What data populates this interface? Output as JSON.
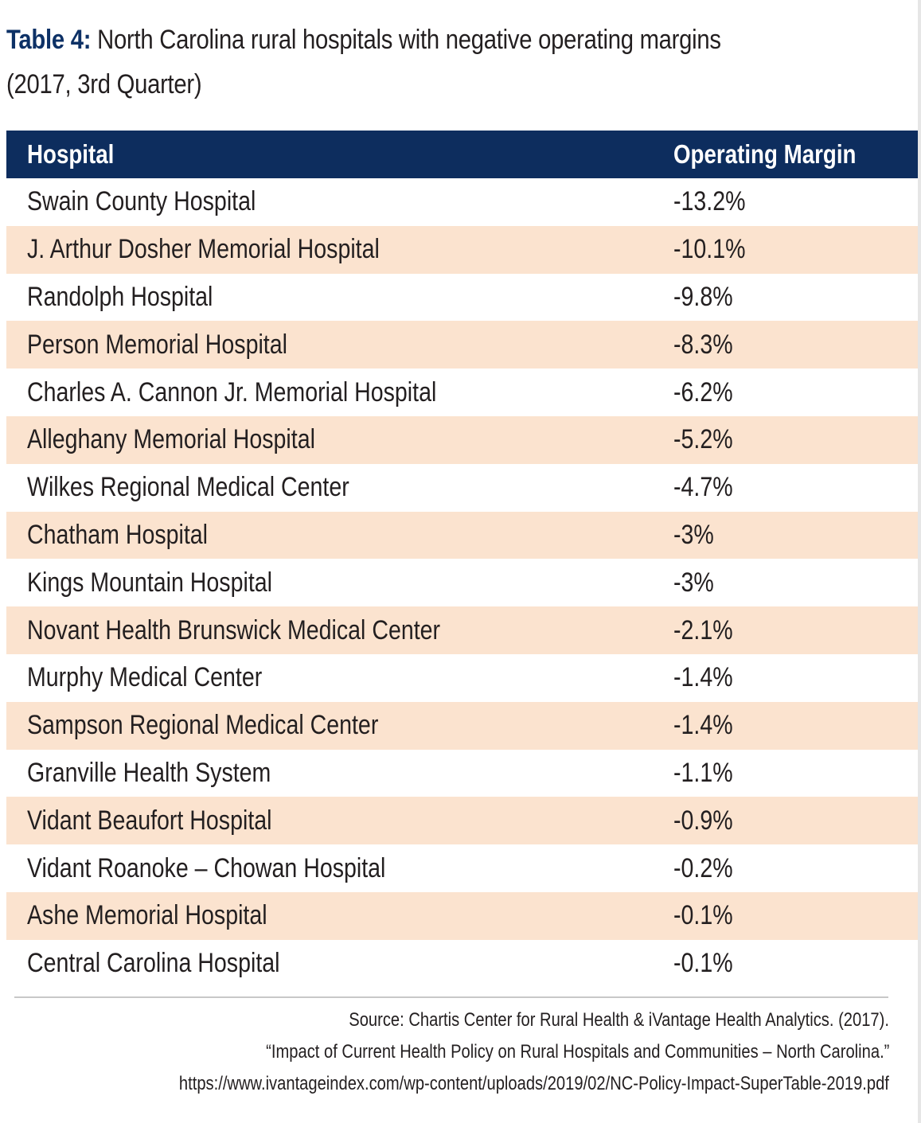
{
  "title": {
    "label": "Table 4:",
    "text": "North Carolina rural hospitals with negative operating margins",
    "line2": "(2017, 3rd Quarter)"
  },
  "table": {
    "columns": [
      "Hospital",
      "Operating Margin"
    ],
    "rows": [
      {
        "hospital": "Swain County Hospital",
        "margin": "-13.2%"
      },
      {
        "hospital": "J. Arthur Dosher Memorial Hospital",
        "margin": "-10.1%"
      },
      {
        "hospital": "Randolph Hospital",
        "margin": "-9.8%"
      },
      {
        "hospital": "Person Memorial Hospital",
        "margin": "-8.3%"
      },
      {
        "hospital": "Charles A. Cannon Jr. Memorial Hospital",
        "margin": "-6.2%"
      },
      {
        "hospital": "Alleghany Memorial Hospital",
        "margin": "-5.2%"
      },
      {
        "hospital": "Wilkes Regional Medical Center",
        "margin": "-4.7%"
      },
      {
        "hospital": "Chatham Hospital",
        "margin": "-3%"
      },
      {
        "hospital": "Kings Mountain Hospital",
        "margin": "-3%"
      },
      {
        "hospital": "Novant Health Brunswick Medical Center",
        "margin": "-2.1%"
      },
      {
        "hospital": "Murphy Medical Center",
        "margin": "-1.4%"
      },
      {
        "hospital": "Sampson Regional Medical Center",
        "margin": "-1.4%"
      },
      {
        "hospital": "Granville Health System",
        "margin": "-1.1%"
      },
      {
        "hospital": "Vidant Beaufort Hospital",
        "margin": "-0.9%"
      },
      {
        "hospital": "Vidant Roanoke – Chowan Hospital",
        "margin": "-0.2%"
      },
      {
        "hospital": "Ashe Memorial Hospital",
        "margin": "-0.1%"
      },
      {
        "hospital": "Central Carolina Hospital",
        "margin": "-0.1%"
      }
    ]
  },
  "source": {
    "line1": "Source: Chartis Center for Rural Health & iVantage Health Analytics. (2017).",
    "line2": "“Impact of Current Health Policy on Rural Hospitals and Communities – North Carolina.”",
    "line3": "https://www.ivantageindex.com/wp-content/uploads/2019/02/NC-Policy-Impact-SuperTable-2019.pdf"
  },
  "colors": {
    "header_bg": "#0d2d5e",
    "title_label": "#0d3166",
    "alt_row_bg": "#fbe3cf",
    "text": "#231f20"
  }
}
